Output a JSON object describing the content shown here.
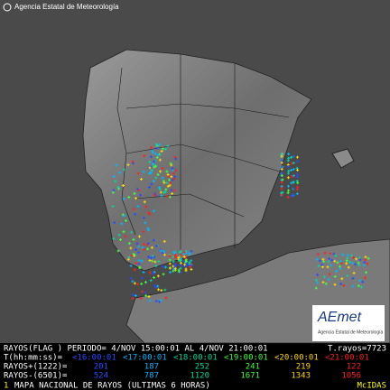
{
  "header": {
    "credit": "Agencia Estatal de Meteorología"
  },
  "logo": {
    "name": "AEmet",
    "subtitle": "Agencia Estatal de Meteorología"
  },
  "legend": {
    "period": "RAYOS(FLAG ) PERIODO= 4/NOV 15:00:01 AL 4/NOV 21:00:01",
    "total": "T.rayos=7723",
    "time_label": "T(hh:mm:ss)=",
    "positive_label": "RAYOS+(1222)=",
    "negative_label": "RAYOS-(6501)=",
    "intervals": [
      {
        "label": "<16:00:01",
        "color": "#2a4bff",
        "positive": 201,
        "negative": 524
      },
      {
        "label": "<17:00:01",
        "color": "#00b8ff",
        "positive": 187,
        "negative": 787
      },
      {
        "label": "<18:00:01",
        "color": "#00d8a0",
        "positive": 252,
        "negative": 1120
      },
      {
        "label": "<19:00:01",
        "color": "#40ff40",
        "positive": 241,
        "negative": 1671
      },
      {
        "label": "<20:00:01",
        "color": "#ffd800",
        "positive": 219,
        "negative": 1343
      },
      {
        "label": "<21:00:01",
        "color": "#ff2020",
        "positive": 122,
        "negative": 1056
      }
    ]
  },
  "footer": {
    "index": "1",
    "title": "MAPA NACIONAL DE RAYOS (ULTIMAS 6 HORAS)",
    "system": "McIDAS"
  }
}
